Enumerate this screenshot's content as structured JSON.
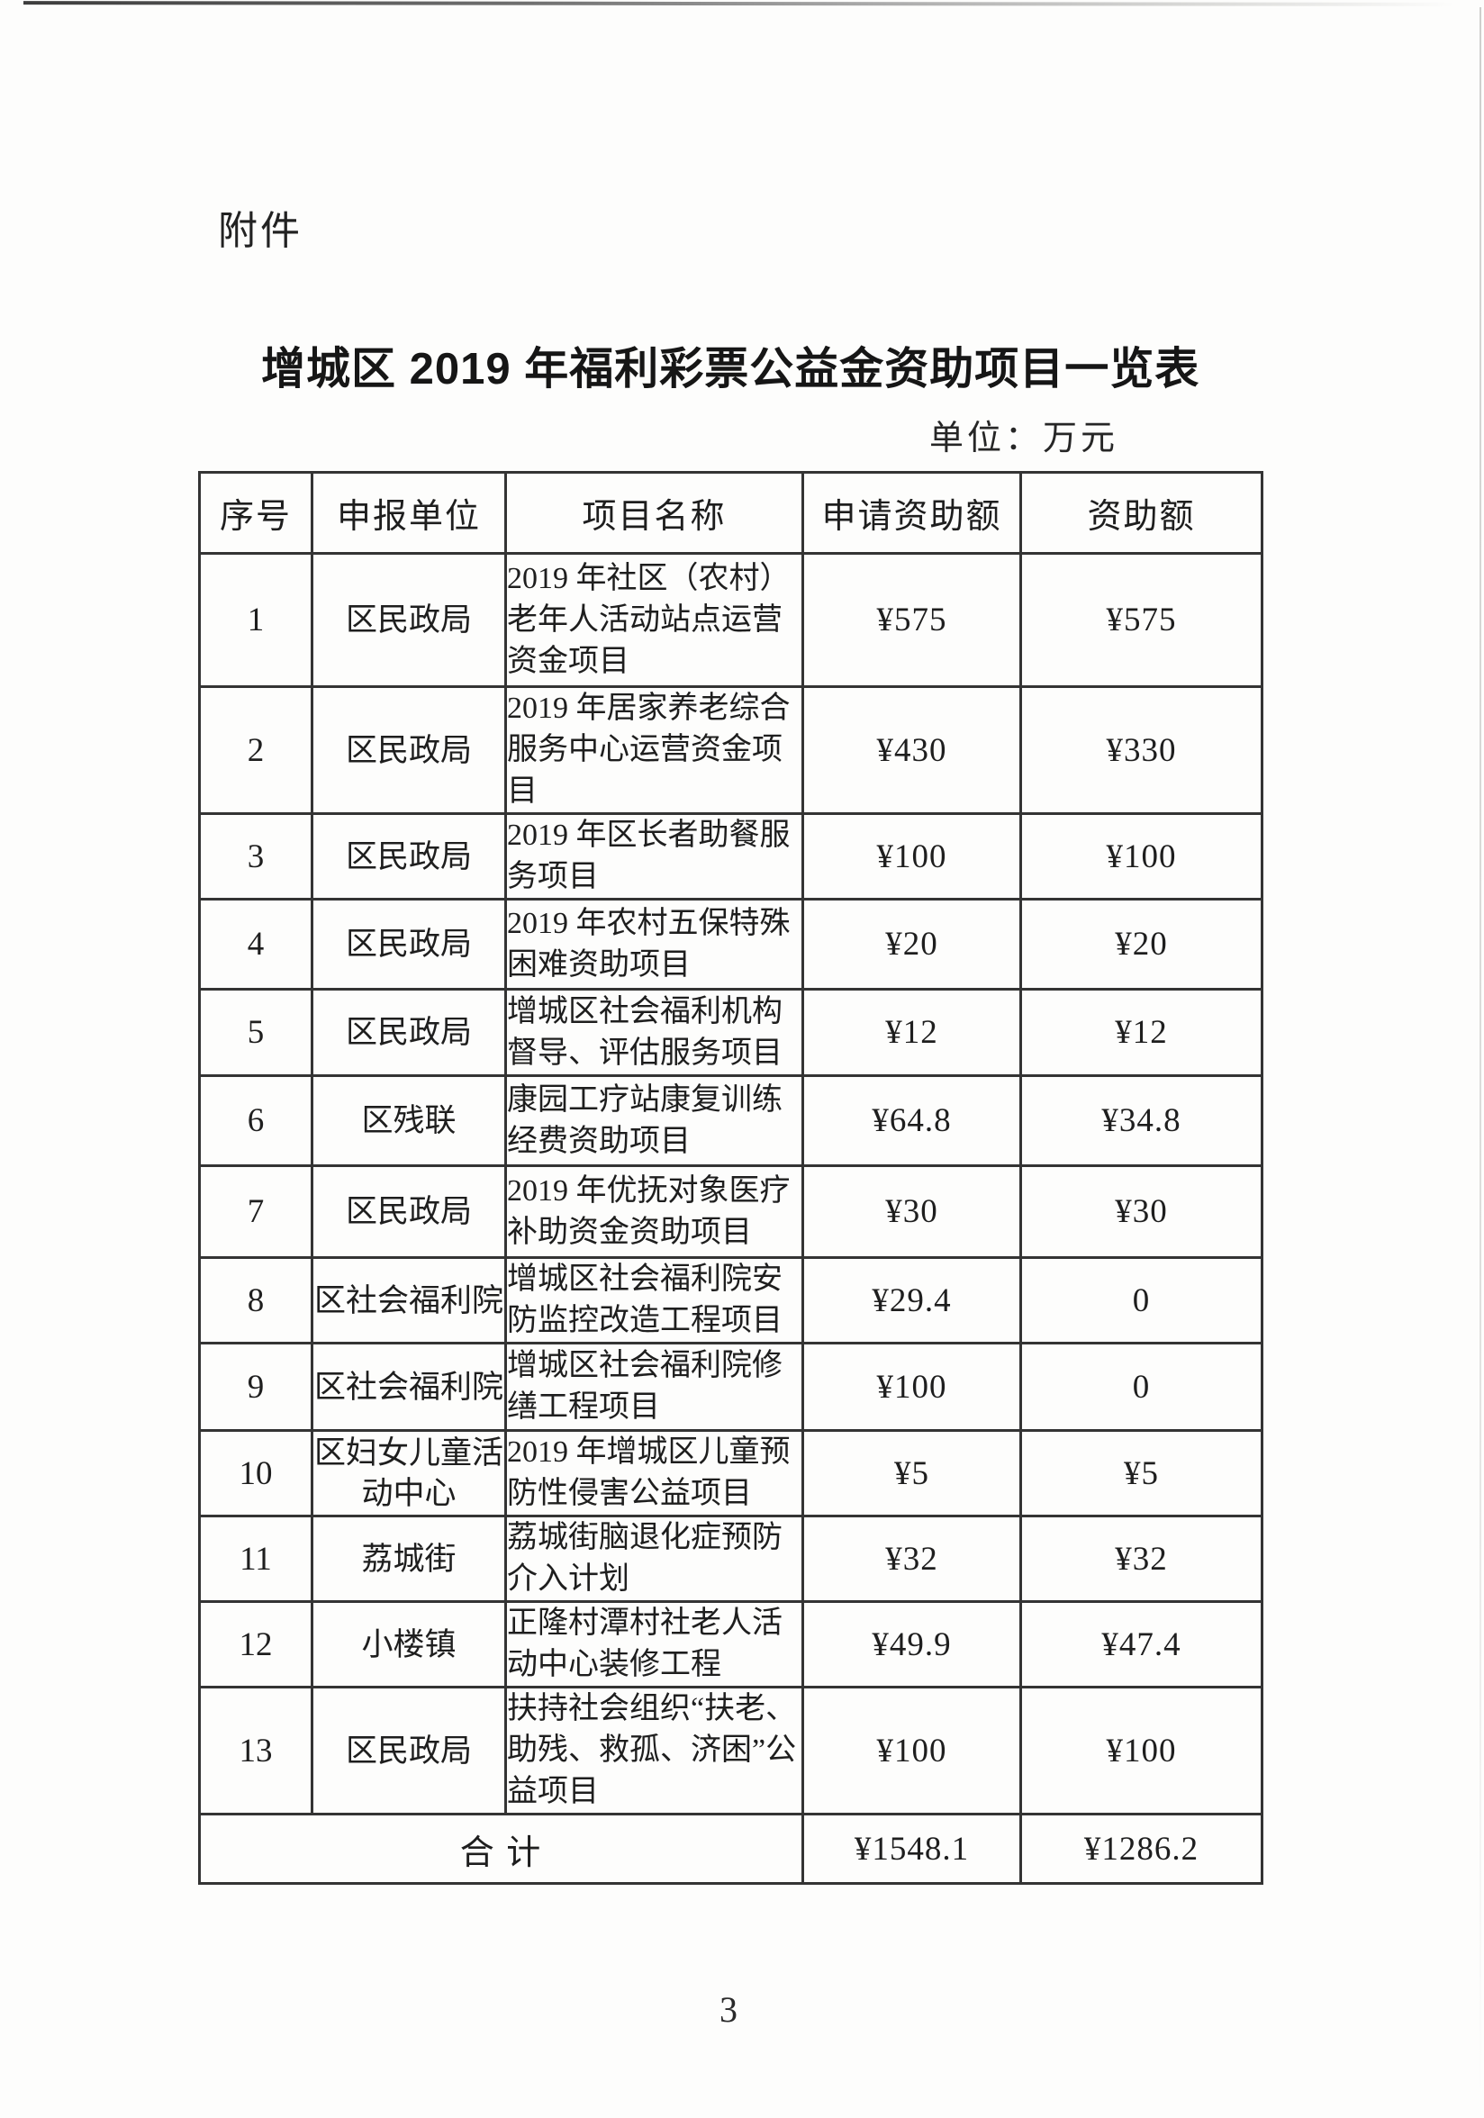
{
  "page": {
    "attachment_label": "附件",
    "title": "增城区 2019 年福利彩票公益金资助项目一览表",
    "unit_note": "单位：万元",
    "page_number": "3"
  },
  "table": {
    "headers": [
      "序号",
      "申报单位",
      "项目名称",
      "申请资助额",
      "资助额"
    ],
    "rows": [
      {
        "no": "1",
        "unit": "区民政局",
        "project": "2019 年社区（农村）老年人活动站点运营资金项目",
        "requested": "¥575",
        "granted": "¥575"
      },
      {
        "no": "2",
        "unit": "区民政局",
        "project": "2019 年居家养老综合服务中心运营资金项目",
        "requested": "¥430",
        "granted": "¥330"
      },
      {
        "no": "3",
        "unit": "区民政局",
        "project": "2019 年区长者助餐服务项目",
        "requested": "¥100",
        "granted": "¥100"
      },
      {
        "no": "4",
        "unit": "区民政局",
        "project": "2019 年农村五保特殊困难资助项目",
        "requested": "¥20",
        "granted": "¥20"
      },
      {
        "no": "5",
        "unit": "区民政局",
        "project": "增城区社会福利机构督导、评估服务项目",
        "requested": "¥12",
        "granted": "¥12"
      },
      {
        "no": "6",
        "unit": "区残联",
        "project": "康园工疗站康复训练经费资助项目",
        "requested": "¥64.8",
        "granted": "¥34.8"
      },
      {
        "no": "7",
        "unit": "区民政局",
        "project": "2019 年优抚对象医疗补助资金资助项目",
        "requested": "¥30",
        "granted": "¥30"
      },
      {
        "no": "8",
        "unit": "区社会福利院",
        "project": "增城区社会福利院安防监控改造工程项目",
        "requested": "¥29.4",
        "granted": "0"
      },
      {
        "no": "9",
        "unit": "区社会福利院",
        "project": "增城区社会福利院修缮工程项目",
        "requested": "¥100",
        "granted": "0"
      },
      {
        "no": "10",
        "unit": "区妇女儿童活动中心",
        "project": "2019 年增城区儿童预防性侵害公益项目",
        "requested": "¥5",
        "granted": "¥5"
      },
      {
        "no": "11",
        "unit": "荔城街",
        "project": "荔城街脑退化症预防介入计划",
        "requested": "¥32",
        "granted": "¥32"
      },
      {
        "no": "12",
        "unit": "小楼镇",
        "project": "正隆村潭村社老人活动中心装修工程",
        "requested": "¥49.9",
        "granted": "¥47.4"
      },
      {
        "no": "13",
        "unit": "区民政局",
        "project": "扶持社会组织“扶老、助残、救孤、济困”公益项目",
        "requested": "¥100",
        "granted": "¥100"
      }
    ],
    "total": {
      "label": "合 计",
      "requested": "¥1548.1",
      "granted": "¥1286.2"
    }
  }
}
